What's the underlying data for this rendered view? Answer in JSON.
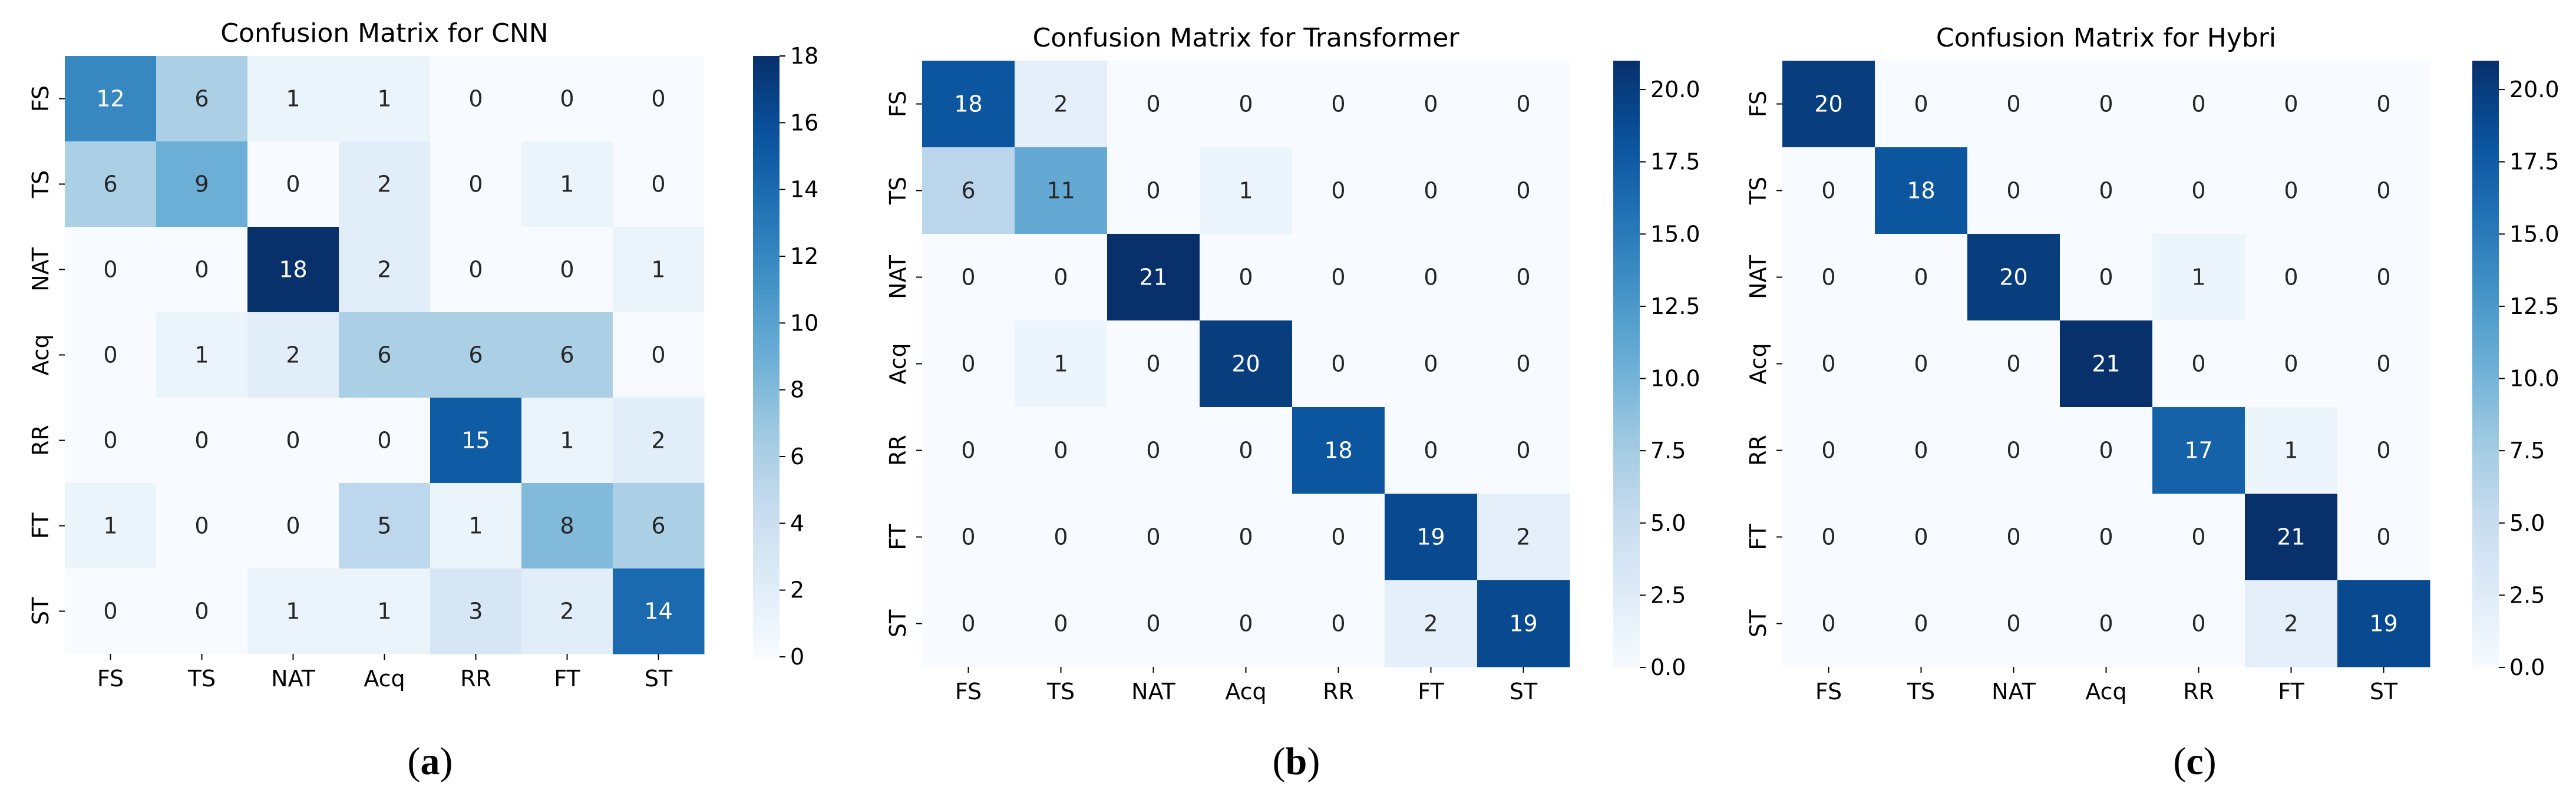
{
  "figure": {
    "captions": [
      {
        "open": "(",
        "letter": "a",
        "close": ")"
      },
      {
        "open": "(",
        "letter": "b",
        "close": ")"
      },
      {
        "open": "(",
        "letter": "c",
        "close": ")"
      }
    ]
  },
  "chart_data": [
    {
      "type": "heatmap",
      "title": "Confusion Matrix for CNN",
      "row_labels": [
        "FS",
        "TS",
        "NAT",
        "Acq",
        "RR",
        "FT",
        "ST"
      ],
      "col_labels": [
        "FS",
        "TS",
        "NAT",
        "Acq",
        "RR",
        "FT",
        "ST"
      ],
      "values": [
        [
          12,
          6,
          1,
          1,
          0,
          0,
          0
        ],
        [
          6,
          9,
          0,
          2,
          0,
          1,
          0
        ],
        [
          0,
          0,
          18,
          2,
          0,
          0,
          1
        ],
        [
          0,
          1,
          2,
          6,
          6,
          6,
          0
        ],
        [
          0,
          0,
          0,
          0,
          15,
          1,
          2
        ],
        [
          1,
          0,
          0,
          5,
          1,
          8,
          6
        ],
        [
          0,
          0,
          1,
          1,
          3,
          2,
          14
        ]
      ],
      "colorbar": {
        "min": 0,
        "max": 18,
        "ticks": [
          0,
          2,
          4,
          6,
          8,
          10,
          12,
          14,
          16,
          18
        ],
        "tick_labels": [
          "0",
          "2",
          "4",
          "6",
          "8",
          "10",
          "12",
          "14",
          "16",
          "18"
        ]
      },
      "colormap": "Blues",
      "xlabel": "",
      "ylabel": ""
    },
    {
      "type": "heatmap",
      "title": "Confusion Matrix for Transformer",
      "row_labels": [
        "FS",
        "TS",
        "NAT",
        "Acq",
        "RR",
        "FT",
        "ST"
      ],
      "col_labels": [
        "FS",
        "TS",
        "NAT",
        "Acq",
        "RR",
        "FT",
        "ST"
      ],
      "values": [
        [
          18,
          2,
          0,
          0,
          0,
          0,
          0
        ],
        [
          6,
          11,
          0,
          1,
          0,
          0,
          0
        ],
        [
          0,
          0,
          21,
          0,
          0,
          0,
          0
        ],
        [
          0,
          1,
          0,
          20,
          0,
          0,
          0
        ],
        [
          0,
          0,
          0,
          0,
          18,
          0,
          0
        ],
        [
          0,
          0,
          0,
          0,
          0,
          19,
          2
        ],
        [
          0,
          0,
          0,
          0,
          0,
          2,
          19
        ]
      ],
      "colorbar": {
        "min": 0,
        "max": 21,
        "ticks": [
          0,
          2.5,
          5,
          7.5,
          10,
          12.5,
          15,
          17.5,
          20
        ],
        "tick_labels": [
          "0.0",
          "2.5",
          "5.0",
          "7.5",
          "10.0",
          "12.5",
          "15.0",
          "17.5",
          "20.0"
        ]
      },
      "colormap": "Blues",
      "xlabel": "",
      "ylabel": ""
    },
    {
      "type": "heatmap",
      "title": "Confusion Matrix for Hybri",
      "row_labels": [
        "FS",
        "TS",
        "NAT",
        "Acq",
        "RR",
        "FT",
        "ST"
      ],
      "col_labels": [
        "FS",
        "TS",
        "NAT",
        "Acq",
        "RR",
        "FT",
        "ST"
      ],
      "values": [
        [
          20,
          0,
          0,
          0,
          0,
          0,
          0
        ],
        [
          0,
          18,
          0,
          0,
          0,
          0,
          0
        ],
        [
          0,
          0,
          20,
          0,
          1,
          0,
          0
        ],
        [
          0,
          0,
          0,
          21,
          0,
          0,
          0
        ],
        [
          0,
          0,
          0,
          0,
          17,
          1,
          0
        ],
        [
          0,
          0,
          0,
          0,
          0,
          21,
          0
        ],
        [
          0,
          0,
          0,
          0,
          0,
          2,
          19
        ]
      ],
      "colorbar": {
        "min": 0,
        "max": 21,
        "ticks": [
          0,
          2.5,
          5,
          7.5,
          10,
          12.5,
          15,
          17.5,
          20
        ],
        "tick_labels": [
          "0.0",
          "2.5",
          "5.0",
          "7.5",
          "10.0",
          "12.5",
          "15.0",
          "17.5",
          "20.0"
        ]
      },
      "colormap": "Blues",
      "xlabel": "",
      "ylabel": ""
    }
  ]
}
